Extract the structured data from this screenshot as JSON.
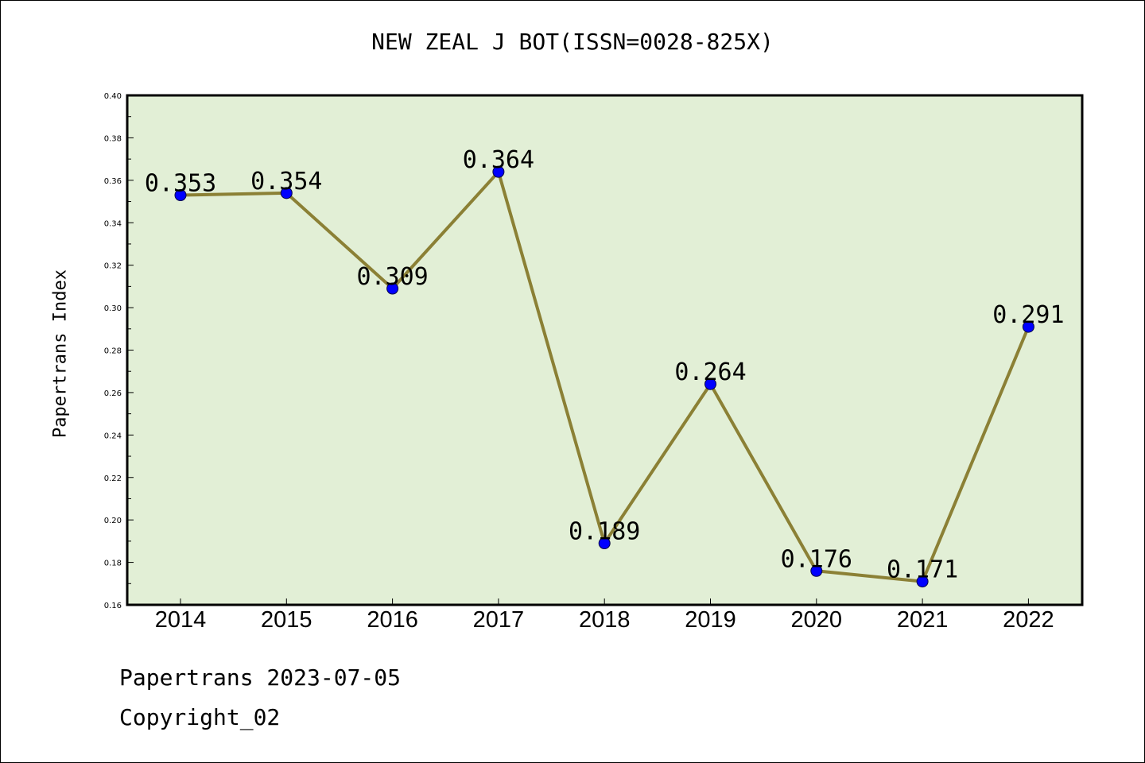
{
  "chart_data": {
    "type": "line",
    "title": "NEW ZEAL J BOT(ISSN=0028-825X)",
    "xlabel": "",
    "ylabel": "Papertrans Index",
    "categories": [
      "2014",
      "2015",
      "2016",
      "2017",
      "2018",
      "2019",
      "2020",
      "2021",
      "2022"
    ],
    "values": [
      0.353,
      0.354,
      0.309,
      0.364,
      0.189,
      0.264,
      0.176,
      0.171,
      0.291
    ],
    "data_labels": [
      "0.353",
      "0.354",
      "0.309",
      "0.364",
      "0.189",
      "0.264",
      "0.176",
      "0.171",
      "0.291"
    ],
    "ylim": [
      0.16,
      0.4
    ],
    "yticks": [
      "0.16",
      "0.18",
      "0.20",
      "0.22",
      "0.24",
      "0.26",
      "0.28",
      "0.30",
      "0.32",
      "0.34",
      "0.36",
      "0.38",
      "0.40"
    ],
    "grid": false,
    "colors": {
      "plot_background": "#e2efd6",
      "line": "#8b8035",
      "marker": "#0000ff"
    }
  },
  "footer": {
    "line1": "Papertrans 2023-07-05",
    "line2": "Copyright_02"
  }
}
